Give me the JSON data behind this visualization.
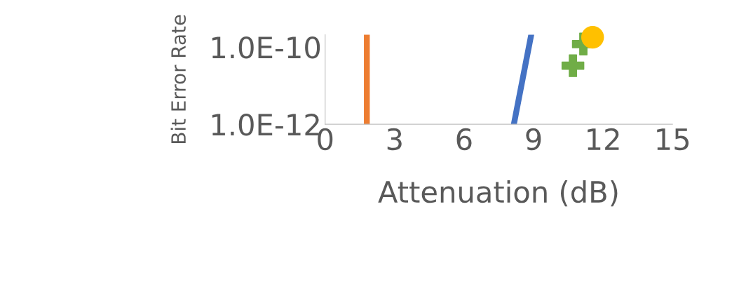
{
  "chart_data": {
    "type": "line",
    "xlabel": "Attenuation (dB)",
    "ylabel": "Bit Error Rate",
    "log": "y",
    "xlim": [
      0,
      15
    ],
    "xticks": [
      0,
      3,
      6,
      9,
      12,
      15
    ],
    "ylim": [
      1e-12,
      2.1e-10
    ],
    "yticks": [
      {
        "value": 1e-12,
        "label": "1.0E-12"
      },
      {
        "value": 1e-10,
        "label": "1.0E-10"
      }
    ],
    "grid": false,
    "legend": false,
    "series": [
      {
        "color": "#ed7d31",
        "marker": "none",
        "x": [
          1.8,
          1.8
        ],
        "values": [
          1e-12,
          2.1e-10
        ]
      },
      {
        "color": "#4472c4",
        "marker": "none",
        "x": [
          8.15,
          8.9
        ],
        "values": [
          1e-12,
          2.1e-10
        ]
      },
      {
        "type": "scatter",
        "color": "#70ad47",
        "marker": "cross",
        "x": [
          10.7,
          11.15
        ],
        "values": [
          3.3e-11,
          1.2e-10
        ]
      },
      {
        "type": "scatter",
        "color": "#ffc000",
        "marker": "circle",
        "x": [
          11.55
        ],
        "values": [
          1.8e-10
        ]
      }
    ]
  }
}
